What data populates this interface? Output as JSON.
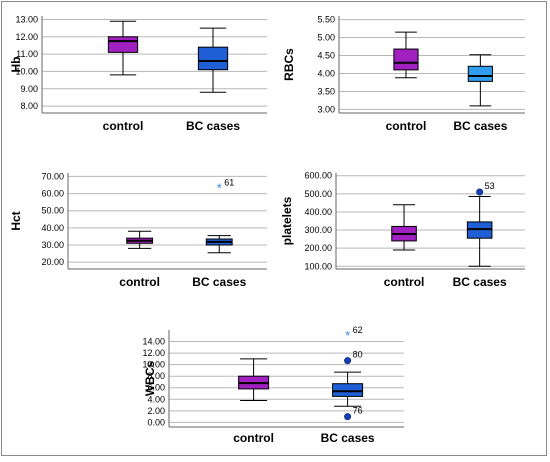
{
  "colors": {
    "control": "#a020c0",
    "bc_cases": "#1f5fd6",
    "bc_cases_rbcs": "#2f9df0",
    "star_outlier": "#3a86e8",
    "circle_outlier": "#1a3fa8",
    "grid": "#b8b8b8"
  },
  "chart_data": [
    {
      "type": "boxplot",
      "ylabel": "Hb",
      "categories": [
        "control",
        "BC cases"
      ],
      "ylim": [
        7.6,
        13.2
      ],
      "yticks": [
        8.0,
        9.0,
        10.0,
        11.0,
        12.0,
        13.0
      ],
      "tick_labels": [
        "8.00",
        "9.00",
        "10.00",
        "11.00",
        "12.00",
        "13.00"
      ],
      "grid": true,
      "boxes": [
        {
          "whisker_low": 9.8,
          "q1": 11.1,
          "median": 11.75,
          "q3": 12.0,
          "whisker_high": 12.9,
          "color": "#a020c0"
        },
        {
          "whisker_low": 8.8,
          "q1": 10.1,
          "median": 10.6,
          "q3": 11.4,
          "whisker_high": 12.5,
          "color": "#1f5fd6"
        }
      ],
      "outliers": []
    },
    {
      "type": "boxplot",
      "ylabel": "RBCs",
      "categories": [
        "control",
        "BC cases"
      ],
      "ylim": [
        2.9,
        5.6
      ],
      "yticks": [
        3.0,
        3.5,
        4.0,
        4.5,
        5.0,
        5.5
      ],
      "tick_labels": [
        "3.00",
        "3.50",
        "4.00",
        "4.50",
        "5.00",
        "5.50"
      ],
      "grid": true,
      "boxes": [
        {
          "whisker_low": 3.88,
          "q1": 4.1,
          "median": 4.3,
          "q3": 4.68,
          "whisker_high": 5.15,
          "color": "#a020c0"
        },
        {
          "whisker_low": 3.1,
          "q1": 3.78,
          "median": 3.93,
          "q3": 4.2,
          "whisker_high": 4.52,
          "color": "#2f9df0"
        }
      ],
      "outliers": []
    },
    {
      "type": "boxplot",
      "ylabel": "Hct",
      "categories": [
        "control",
        "BC cases"
      ],
      "ylim": [
        16,
        72
      ],
      "yticks": [
        20,
        30,
        40,
        50,
        60,
        70
      ],
      "tick_labels": [
        "20.00",
        "30.00",
        "40.00",
        "50.00",
        "60.00",
        "70.00"
      ],
      "grid": true,
      "boxes": [
        {
          "whisker_low": 28.0,
          "q1": 31.0,
          "median": 32.5,
          "q3": 34.0,
          "whisker_high": 38.0,
          "color": "#a020c0"
        },
        {
          "whisker_low": 25.5,
          "q1": 30.0,
          "median": 31.8,
          "q3": 33.5,
          "whisker_high": 35.5,
          "color": "#1f5fd6"
        }
      ],
      "outliers": [
        {
          "category": 1,
          "value": 63.0,
          "label": "61",
          "marker": "star"
        }
      ]
    },
    {
      "type": "boxplot",
      "ylabel": "platelets",
      "categories": [
        "control",
        "BC cases"
      ],
      "ylim": [
        85,
        615
      ],
      "yticks": [
        100,
        200,
        300,
        400,
        500,
        600
      ],
      "tick_labels": [
        "100.00",
        "200.00",
        "300.00",
        "400.00",
        "500.00",
        "600.00"
      ],
      "grid": true,
      "boxes": [
        {
          "whisker_low": 190,
          "q1": 240,
          "median": 278,
          "q3": 320,
          "whisker_high": 440,
          "color": "#a020c0"
        },
        {
          "whisker_low": 100,
          "q1": 255,
          "median": 305,
          "q3": 345,
          "whisker_high": 485,
          "color": "#1f5fd6"
        }
      ],
      "outliers": [
        {
          "category": 1,
          "value": 510,
          "label": "53",
          "marker": "circle"
        }
      ]
    },
    {
      "type": "boxplot",
      "ylabel": "WBCs",
      "categories": [
        "control",
        "BC cases"
      ],
      "ylim": [
        -0.8,
        16
      ],
      "yticks": [
        0,
        2,
        4,
        6,
        8,
        10,
        12,
        14
      ],
      "tick_labels": [
        "0.00",
        "2.00",
        "4.00",
        "6.00",
        "8.00",
        "10.00",
        "12.00",
        "14.00"
      ],
      "grid": true,
      "boxes": [
        {
          "whisker_low": 3.8,
          "q1": 5.8,
          "median": 6.8,
          "q3": 8.0,
          "whisker_high": 11.0,
          "color": "#a020c0"
        },
        {
          "whisker_low": 2.8,
          "q1": 4.5,
          "median": 5.4,
          "q3": 6.7,
          "whisker_high": 8.7,
          "color": "#1f5fd6"
        }
      ],
      "outliers": [
        {
          "category": 1,
          "value": 15.0,
          "label": "62",
          "marker": "star"
        },
        {
          "category": 1,
          "value": 10.7,
          "label": "80",
          "marker": "circle"
        },
        {
          "category": 1,
          "value": 1.0,
          "label": "76",
          "marker": "circle"
        }
      ]
    }
  ]
}
